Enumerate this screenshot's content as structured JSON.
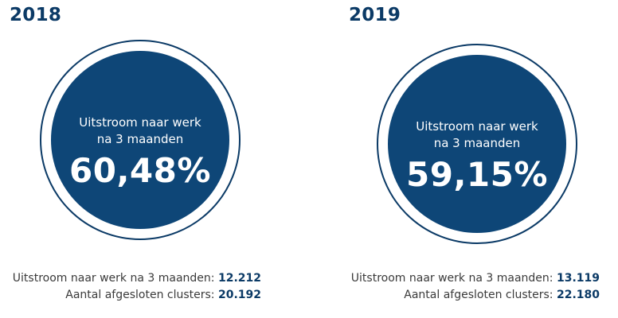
{
  "colors": {
    "primary": "#0e4677",
    "heading": "#0b3a66",
    "text": "#3a3a3a"
  },
  "panels": [
    {
      "year": "2018",
      "circle_label_line1": "Uitstroom naar werk",
      "circle_label_line2": "na 3 maanden",
      "percentage": "60,48%",
      "stat1_label": "Uitstroom naar werk na 3 maanden:",
      "stat1_value": "12.212",
      "stat2_label": "Aantal afgesloten clusters:",
      "stat2_value": "20.192"
    },
    {
      "year": "2019",
      "circle_label_line1": "Uitstroom naar werk",
      "circle_label_line2": "na 3 maanden",
      "percentage": "59,15%",
      "stat1_label": "Uitstroom naar werk na 3 maanden:",
      "stat1_value": "13.119",
      "stat2_label": "Aantal afgesloten clusters:",
      "stat2_value": "22.180"
    }
  ]
}
